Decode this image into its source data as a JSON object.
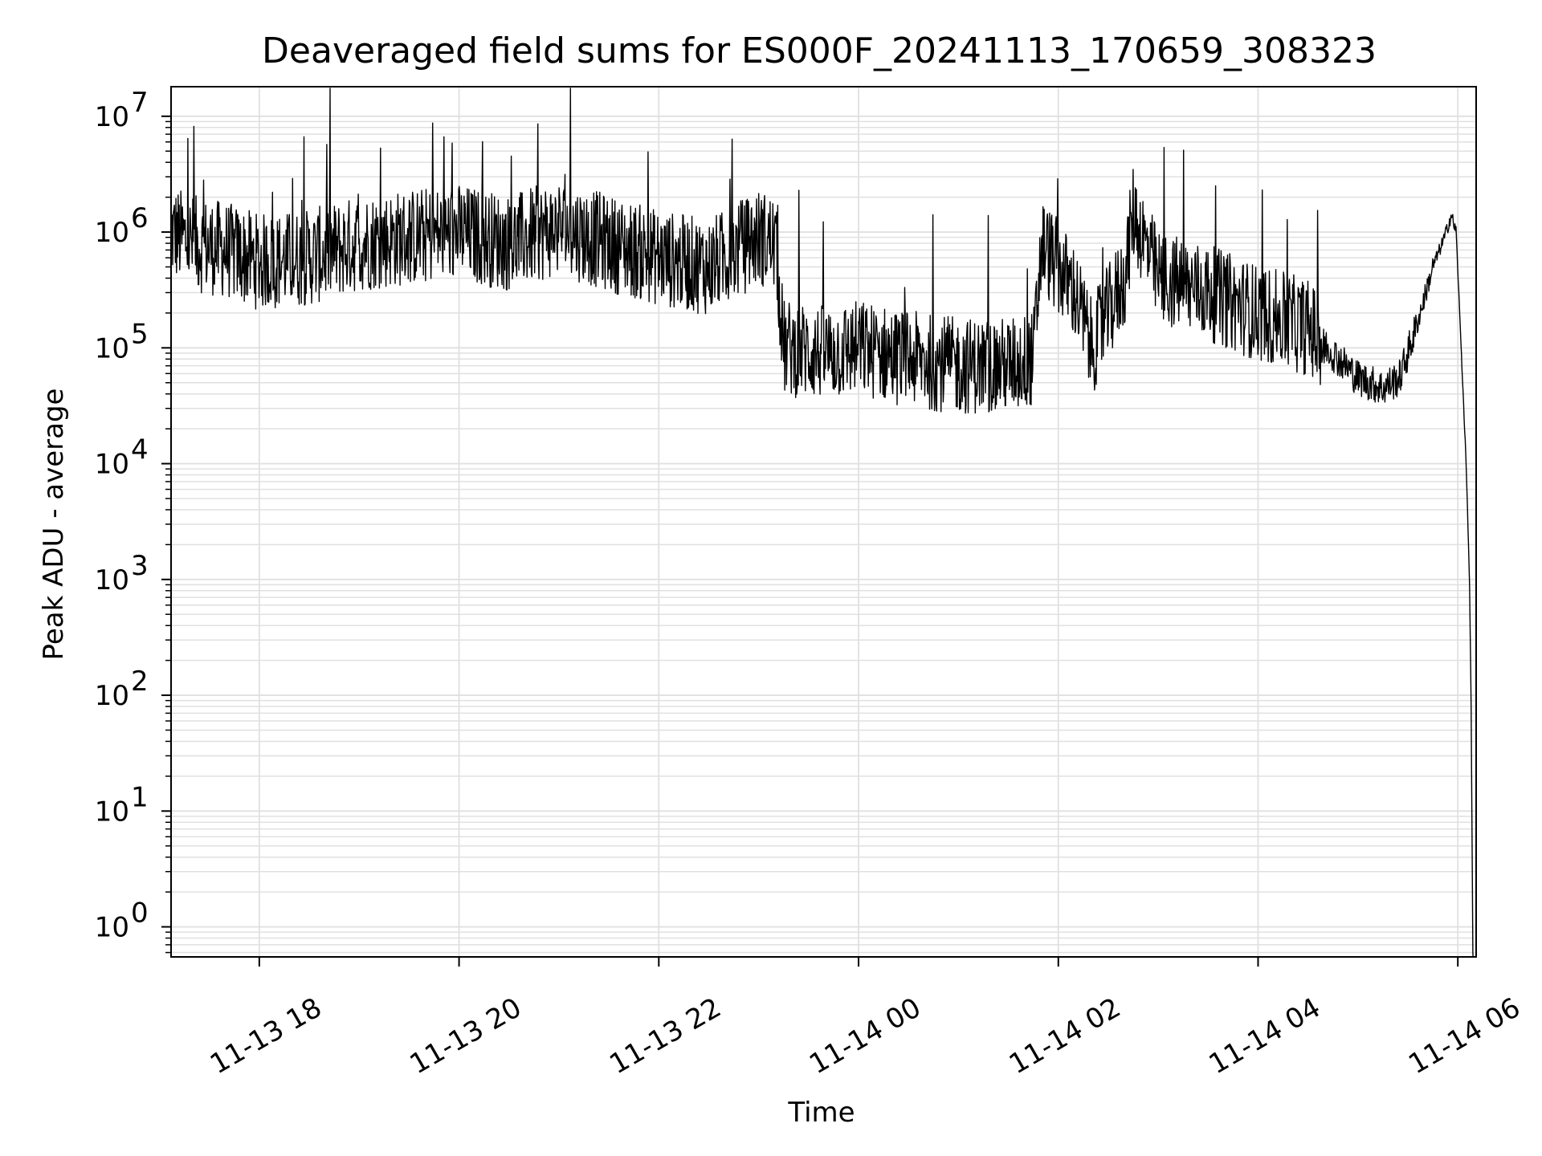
{
  "chart_data": {
    "type": "line",
    "title": "Deaveraged field sums for ES000F_20241113_170659_308323",
    "xlabel": "Time",
    "ylabel": "Peak ADU - average",
    "yscale": "log",
    "ylim": [
      0.55,
      18000000
    ],
    "xlim": [
      "2024-11-13 17:07",
      "2024-11-14 06:11"
    ],
    "grid": true,
    "line_color": "#000000",
    "grid_color": "#e0e0e0",
    "x_ticks": [
      {
        "value": "2024-11-13 18:00",
        "label": "11-13 18"
      },
      {
        "value": "2024-11-13 20:00",
        "label": "11-13 20"
      },
      {
        "value": "2024-11-13 22:00",
        "label": "11-13 22"
      },
      {
        "value": "2024-11-14 00:00",
        "label": "11-14 00"
      },
      {
        "value": "2024-11-14 02:00",
        "label": "11-14 02"
      },
      {
        "value": "2024-11-14 04:00",
        "label": "11-14 04"
      },
      {
        "value": "2024-11-14 06:00",
        "label": "11-14 06"
      }
    ],
    "y_ticks": [
      {
        "value": 1,
        "base": "10",
        "exp": "0"
      },
      {
        "value": 10,
        "base": "10",
        "exp": "1"
      },
      {
        "value": 100,
        "base": "10",
        "exp": "2"
      },
      {
        "value": 1000,
        "base": "10",
        "exp": "3"
      },
      {
        "value": 10000,
        "base": "10",
        "exp": "4"
      },
      {
        "value": 100000,
        "base": "10",
        "exp": "5"
      },
      {
        "value": 1000000,
        "base": "10",
        "exp": "6"
      },
      {
        "value": 10000000,
        "base": "10",
        "exp": "7"
      }
    ],
    "series": [
      {
        "x": [
          "2024-11-13 17:07",
          "2024-11-13 17:20",
          "2024-11-13 17:40",
          "2024-11-13 18:00",
          "2024-11-13 18:30",
          "2024-11-13 19:00",
          "2024-11-13 19:30",
          "2024-11-13 20:00",
          "2024-11-13 20:30",
          "2024-11-13 21:00",
          "2024-11-13 21:30",
          "2024-11-13 22:00",
          "2024-11-13 22:30",
          "2024-11-13 23:00",
          "2024-11-13 23:10",
          "2024-11-13 23:15",
          "2024-11-13 23:40",
          "2024-11-14 00:00",
          "2024-11-14 00:30",
          "2024-11-14 01:00",
          "2024-11-14 01:30",
          "2024-11-14 01:45",
          "2024-11-14 01:50",
          "2024-11-14 02:10",
          "2024-11-14 02:20",
          "2024-11-14 02:40",
          "2024-11-14 02:45",
          "2024-11-14 03:00",
          "2024-11-14 03:30",
          "2024-11-14 04:00",
          "2024-11-14 04:30",
          "2024-11-14 04:45",
          "2024-11-14 05:00",
          "2024-11-14 05:15",
          "2024-11-14 05:25",
          "2024-11-14 05:35",
          "2024-11-14 05:45",
          "2024-11-14 05:52",
          "2024-11-14 05:56",
          "2024-11-14 05:59",
          "2024-11-14 06:02",
          "2024-11-14 06:05",
          "2024-11-14 06:07",
          "2024-11-14 06:08",
          "2024-11-14 06:09"
        ],
        "y": [
          1000000,
          800000,
          700000,
          550000,
          600000,
          800000,
          900000,
          1000000,
          800000,
          1100000,
          800000,
          600000,
          500000,
          900000,
          800000,
          100000,
          90000,
          100000,
          80000,
          70000,
          70000,
          80000,
          800000,
          300000,
          100000,
          400000,
          1500000,
          400000,
          300000,
          200000,
          150000,
          90000,
          55000,
          45000,
          55000,
          150000,
          500000,
          900000,
          1400000,
          1000000,
          100000,
          10000,
          1000,
          80,
          0.6
        ]
      }
    ]
  }
}
